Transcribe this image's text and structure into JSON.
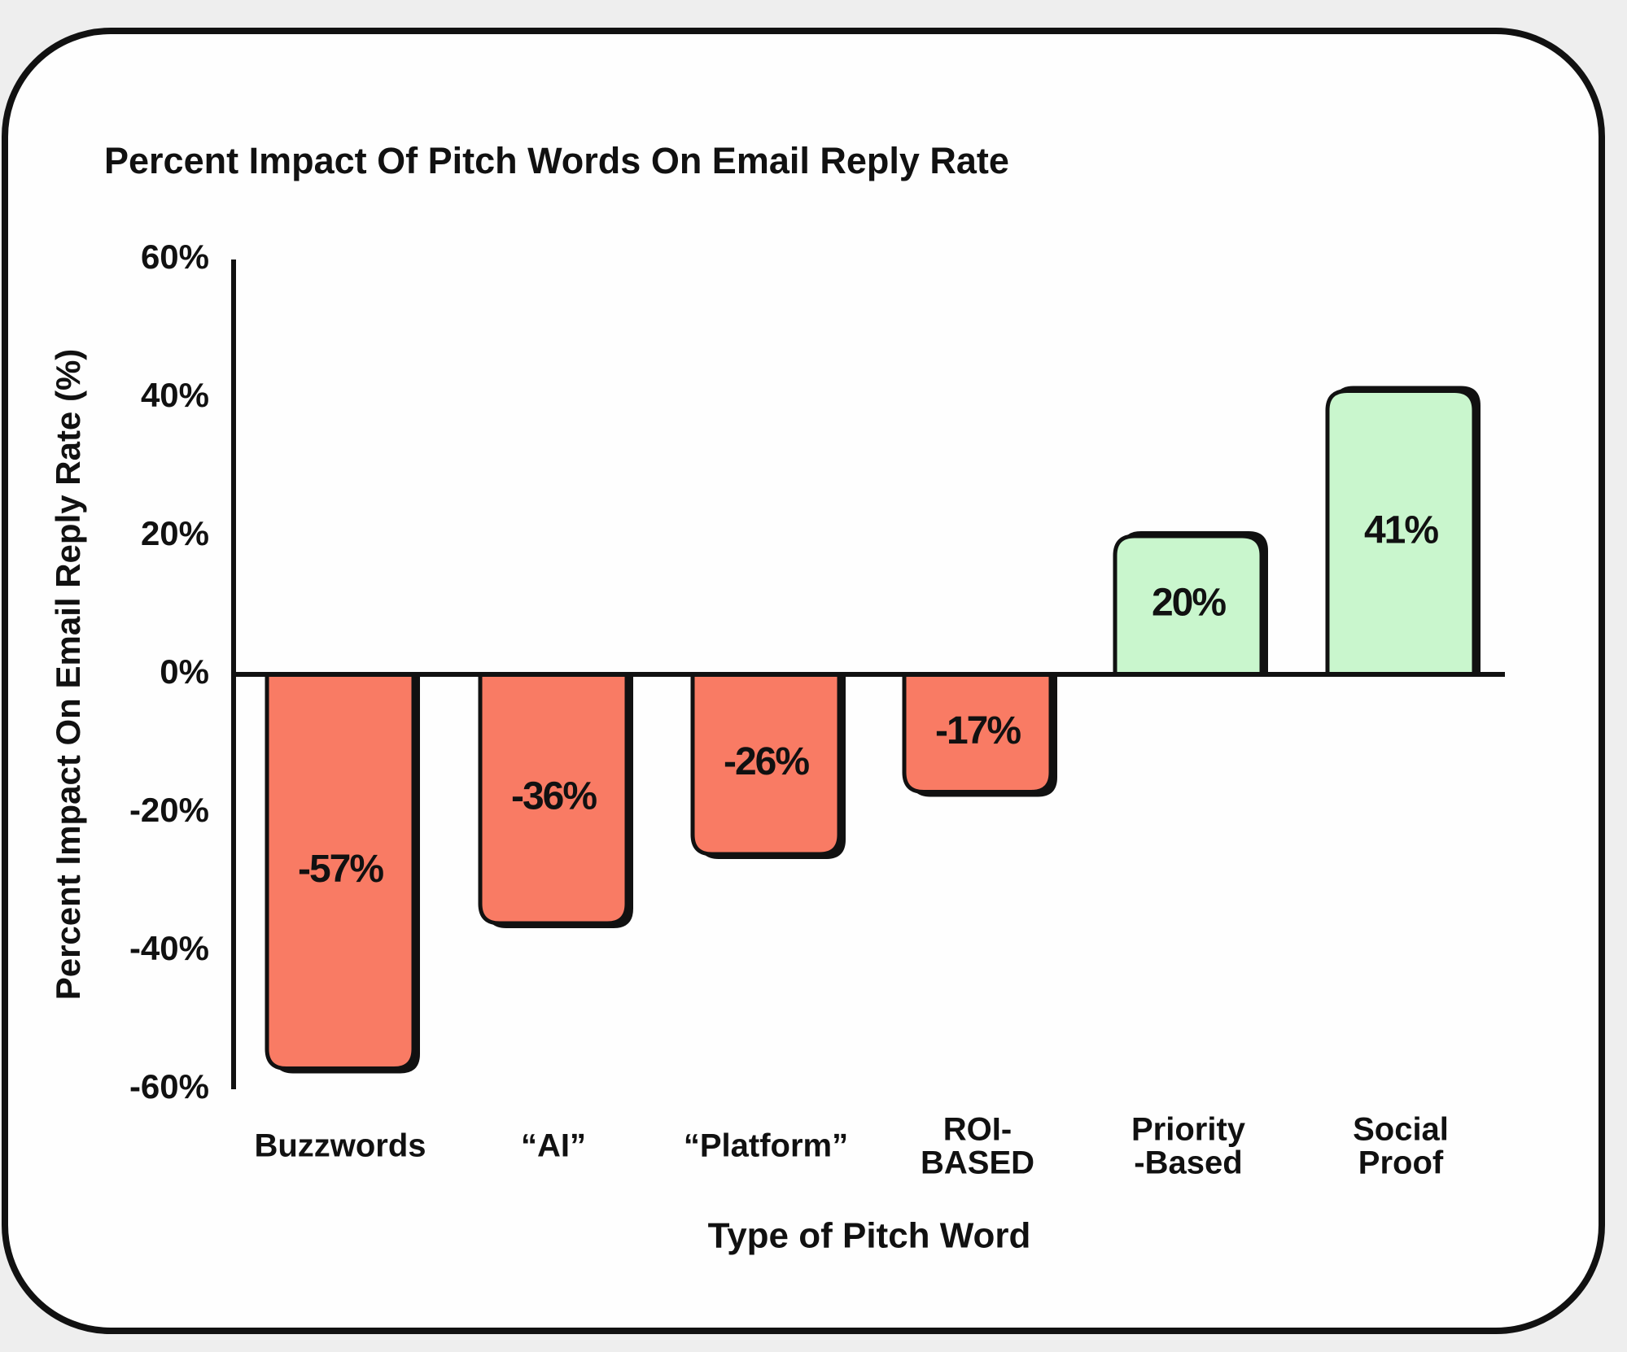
{
  "chart_data": {
    "type": "bar",
    "title": "Percent Impact Of Pitch Words On Email Reply Rate",
    "x_label": "Type of Pitch Word",
    "y_label": "Percent Impact On Email Reply Rate (%)",
    "categories": [
      "Buzzwords",
      "“AI”",
      "“Platform”",
      "ROI-\nBASED",
      "Priority\n-Based",
      "Social\nProof"
    ],
    "values": [
      -57,
      -36,
      -26,
      -17,
      20,
      41
    ],
    "value_labels": [
      "-57%",
      "-36%",
      "-26%",
      "-17%",
      "20%",
      "41%"
    ],
    "colors": [
      "#f97b64",
      "#f97b64",
      "#f97b64",
      "#f97b64",
      "#c9f6cd",
      "#c9f6cd"
    ],
    "ylim": [
      -60,
      60
    ],
    "yticks": [
      {
        "value": 60,
        "label": "60%"
      },
      {
        "value": 40,
        "label": "40%"
      },
      {
        "value": 20,
        "label": "20%"
      },
      {
        "value": 0,
        "label": "0%"
      },
      {
        "value": -20,
        "label": "-20%"
      },
      {
        "value": -40,
        "label": "-40%"
      },
      {
        "value": -60,
        "label": "-60%"
      }
    ],
    "grid": false
  }
}
